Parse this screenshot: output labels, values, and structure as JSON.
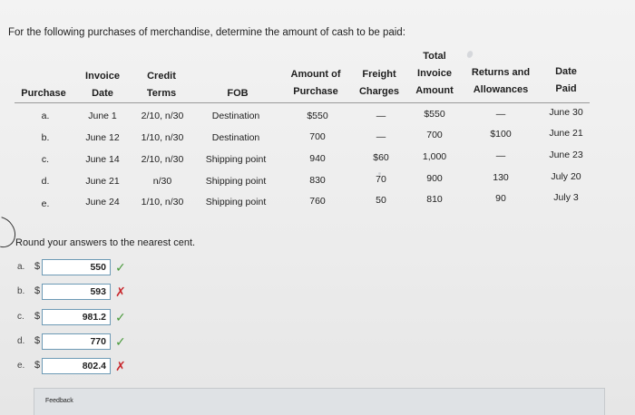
{
  "instruction": "For the following purchases of merchandise, determine the amount of cash to be paid:",
  "headers": {
    "purchase": "Purchase",
    "invoice_date_1": "Invoice",
    "invoice_date_2": "Date",
    "credit_terms_1": "Credit",
    "credit_terms_2": "Terms",
    "fob": "FOB",
    "amount_1": "Amount of",
    "amount_2": "Purchase",
    "freight_1": "Freight",
    "freight_2": "Charges",
    "total_1": "Total",
    "total_2": "Invoice",
    "total_3": "Amount",
    "returns_1": "Returns and",
    "returns_2": "Allowances",
    "datepaid_1": "Date",
    "datepaid_2": "Paid"
  },
  "rows": [
    {
      "purchase": "a.",
      "date": "June 1",
      "terms": "2/10, n/30",
      "fob": "Destination",
      "amount": "$550",
      "freight": "—",
      "total": "$550",
      "returns": "—",
      "paid": "June 30"
    },
    {
      "purchase": "b.",
      "date": "June 12",
      "terms": "1/10, n/30",
      "fob": "Destination",
      "amount": "700",
      "freight": "—",
      "total": "700",
      "returns": "$100",
      "paid": "June 21"
    },
    {
      "purchase": "c.",
      "date": "June 14",
      "terms": "2/10, n/30",
      "fob": "Shipping point",
      "amount": "940",
      "freight": "$60",
      "total": "1,000",
      "returns": "—",
      "paid": "June 23"
    },
    {
      "purchase": "d.",
      "date": "June 21",
      "terms": "n/30",
      "fob": "Shipping point",
      "amount": "830",
      "freight": "70",
      "total": "900",
      "returns": "130",
      "paid": "July 20"
    },
    {
      "purchase": "e.",
      "date": "June 24",
      "terms": "1/10, n/30",
      "fob": "Shipping point",
      "amount": "760",
      "freight": "50",
      "total": "810",
      "returns": "90",
      "paid": "July 3"
    }
  ],
  "round_note": "Round your answers to the nearest cent.",
  "answers": [
    {
      "letter": "a.",
      "currency": "$",
      "value": "550",
      "status": "correct",
      "status_symbol": "✓"
    },
    {
      "letter": "b.",
      "currency": "$",
      "value": "593",
      "status": "incorrect",
      "status_symbol": "✗"
    },
    {
      "letter": "c.",
      "currency": "$",
      "value": "981.2",
      "status": "correct",
      "status_symbol": "✓"
    },
    {
      "letter": "d.",
      "currency": "$",
      "value": "770",
      "status": "correct",
      "status_symbol": "✓"
    },
    {
      "letter": "e.",
      "currency": "$",
      "value": "802.4",
      "status": "incorrect",
      "status_symbol": "✗"
    }
  ],
  "feedback_label": "Feedback",
  "colors": {
    "correct": "#4a9a3c",
    "incorrect": "#c8282d",
    "input_border": "#6d9ab5"
  }
}
